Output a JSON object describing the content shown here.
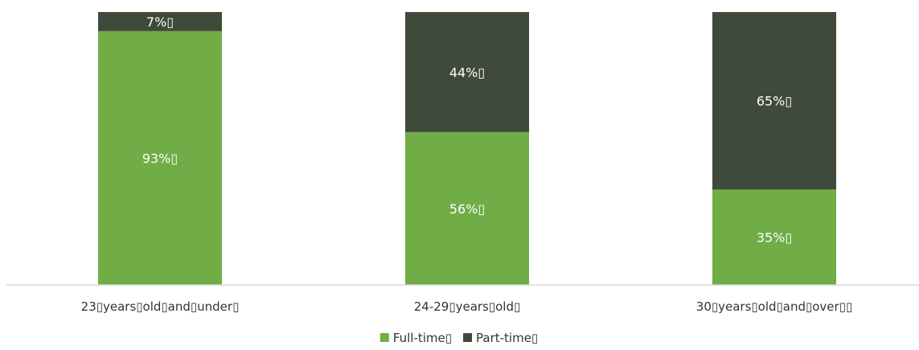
{
  "chart_data": {
    "type": "bar",
    "stacked": true,
    "percent": true,
    "categories": [
      "23▯years▯old▯and▯under▯",
      "24-29▯years▯old▯",
      "30▯years▯old▯and▯over▯▯"
    ],
    "series": [
      {
        "name": "Full-time▯",
        "color": "#70AD47",
        "values": [
          93,
          56,
          35
        ],
        "labels": [
          "93%▯",
          "56%▯",
          "35%▯"
        ]
      },
      {
        "name": "Part-time▯",
        "color": "#404A3A",
        "values": [
          7,
          44,
          65
        ],
        "labels": [
          "7%▯",
          "44%▯",
          "65%▯"
        ]
      }
    ],
    "ylim": [
      0,
      100
    ],
    "grid": false,
    "legend": "bottom-center",
    "axis_color": "#D9D9D9"
  }
}
